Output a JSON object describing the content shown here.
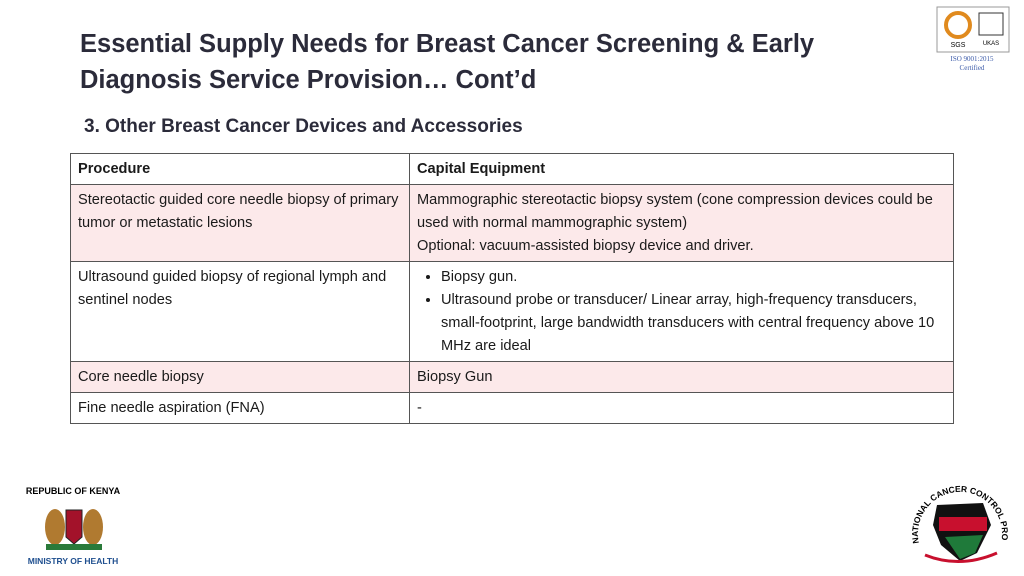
{
  "header": {
    "title_lines": [
      "Essential Supply Needs for Breast Cancer Screening & Early",
      "Diagnosis Service Provision… Cont’d"
    ],
    "subtitle": "3. Other Breast Cancer Devices and Accessories"
  },
  "certification": {
    "badges": [
      "SGS",
      "UKAS"
    ],
    "lines": [
      "ISO 9001:2015",
      "Certified"
    ]
  },
  "table": {
    "columns": [
      "Procedure",
      "Capital Equipment"
    ],
    "rows": [
      {
        "procedure": "Stereotactic guided core needle biopsy of primary tumor or metastatic lesions",
        "equipment": [
          "Mammographic stereotactic biopsy system (cone compression devices could be used with normal mammographic system)",
          "Optional: vacuum-assisted biopsy device and driver."
        ],
        "bulleted": false
      },
      {
        "procedure": "Ultrasound guided biopsy of regional lymph and sentinel nodes",
        "equipment": [
          "Biopsy gun.",
          "Ultrasound probe or transducer/ Linear array, high-frequency transducers, small-footprint, large bandwidth transducers with central frequency above 10 MHz are ideal"
        ],
        "bulleted": true
      },
      {
        "procedure": "Core needle biopsy",
        "equipment": [
          "Biopsy Gun"
        ],
        "bulleted": false
      },
      {
        "procedure": "Fine needle aspiration (FNA)",
        "equipment": [
          "-"
        ],
        "bulleted": false
      }
    ]
  },
  "footer": {
    "left_logo": {
      "top": "REPUBLIC OF KENYA",
      "bottom": "MINISTRY OF HEALTH"
    },
    "right_logo": "NATIONAL CANCER CONTROL PROGRAM"
  }
}
